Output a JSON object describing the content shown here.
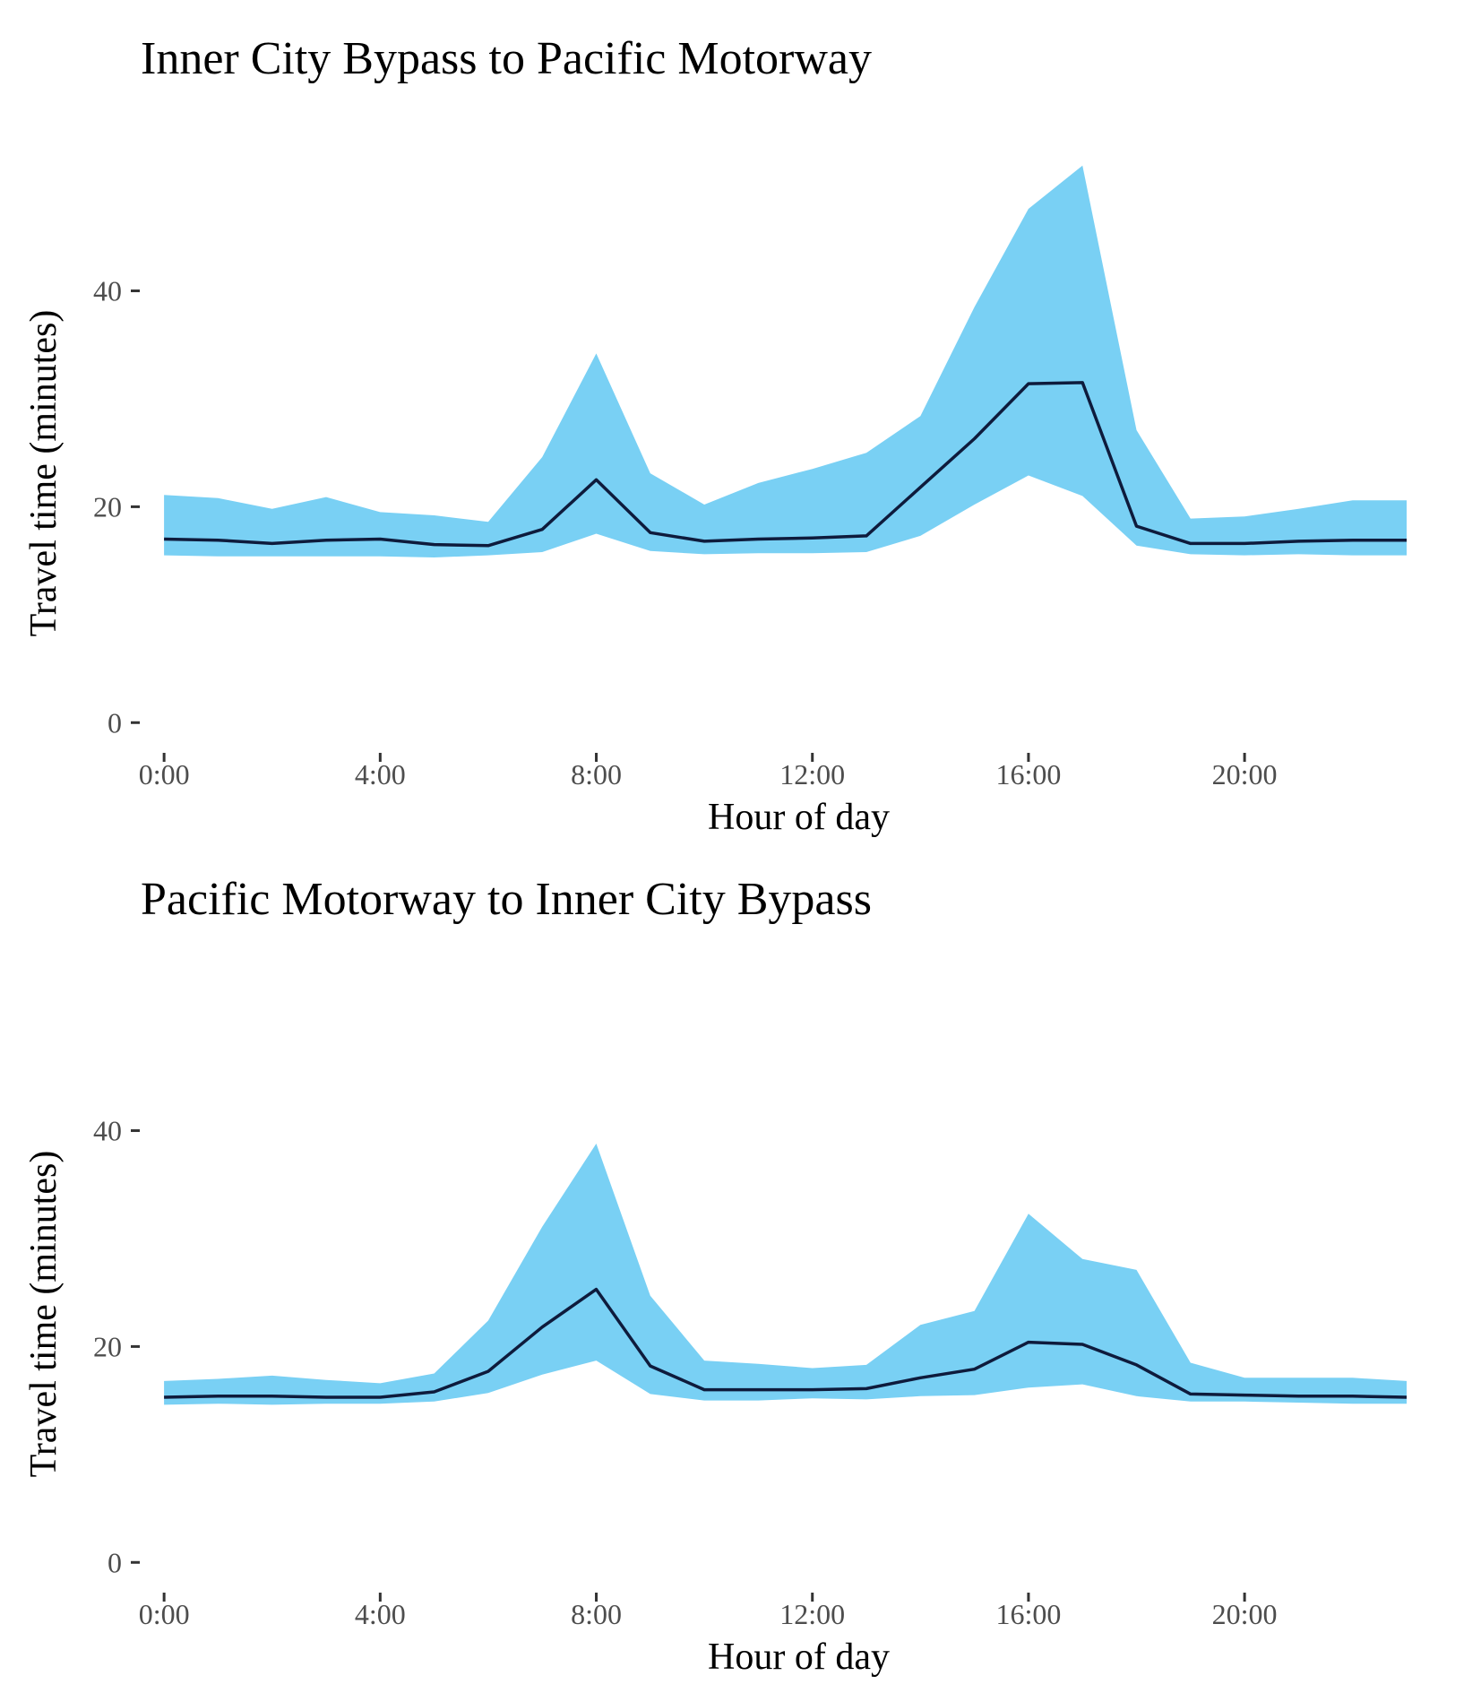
{
  "chart_data": [
    {
      "type": "area",
      "title": "Inner City Bypass to Pacific Motorway",
      "xlabel": "Hour of day",
      "ylabel": "Travel time (minutes)",
      "x": [
        0,
        1,
        2,
        3,
        4,
        5,
        6,
        7,
        8,
        9,
        10,
        11,
        12,
        13,
        14,
        15,
        16,
        17,
        18,
        19,
        20,
        21,
        22,
        23
      ],
      "xticks": [
        0,
        4,
        8,
        12,
        16,
        20
      ],
      "xtick_labels": [
        "0:00",
        "4:00",
        "8:00",
        "12:00",
        "16:00",
        "20:00"
      ],
      "yticks": [
        0,
        20,
        40
      ],
      "ytick_labels": [
        "0",
        "20",
        "40"
      ],
      "xlim": [
        -0.5,
        23
      ],
      "ylim": [
        -2.8,
        52
      ],
      "grid": false,
      "series": [
        {
          "role": "median",
          "values": [
            17.0,
            16.9,
            16.6,
            16.9,
            17.0,
            16.5,
            16.4,
            17.9,
            22.5,
            17.6,
            16.8,
            17.0,
            17.1,
            17.3,
            21.8,
            26.3,
            31.4,
            31.5,
            18.2,
            16.6,
            16.6,
            16.8,
            16.9,
            16.9
          ]
        },
        {
          "role": "upper",
          "values": [
            21.1,
            20.8,
            19.8,
            20.9,
            19.5,
            19.2,
            18.6,
            24.6,
            34.2,
            23.1,
            20.2,
            22.2,
            23.5,
            25.0,
            28.4,
            38.5,
            47.6,
            51.6,
            27.1,
            18.9,
            19.1,
            19.8,
            20.6,
            20.6
          ]
        },
        {
          "role": "lower",
          "values": [
            15.5,
            15.4,
            15.4,
            15.4,
            15.4,
            15.3,
            15.5,
            15.8,
            17.5,
            15.9,
            15.6,
            15.7,
            15.7,
            15.8,
            17.3,
            20.2,
            22.9,
            21.0,
            16.4,
            15.6,
            15.5,
            15.6,
            15.5,
            15.5
          ]
        }
      ],
      "colors": {
        "band": "#79d0f4",
        "line": "#0e1b3c"
      }
    },
    {
      "type": "area",
      "title": "Pacific Motorway to Inner City Bypass",
      "xlabel": "Hour of day",
      "ylabel": "Travel time (minutes)",
      "x": [
        0,
        1,
        2,
        3,
        4,
        5,
        6,
        7,
        8,
        9,
        10,
        11,
        12,
        13,
        14,
        15,
        16,
        17,
        18,
        19,
        20,
        21,
        22,
        23
      ],
      "xticks": [
        0,
        4,
        8,
        12,
        16,
        20
      ],
      "xtick_labels": [
        "0:00",
        "4:00",
        "8:00",
        "12:00",
        "16:00",
        "20:00"
      ],
      "yticks": [
        0,
        20,
        40
      ],
      "ytick_labels": [
        "0",
        "20",
        "40"
      ],
      "xlim": [
        -0.5,
        23
      ],
      "ylim": [
        -2.8,
        52
      ],
      "grid": false,
      "series": [
        {
          "role": "median",
          "values": [
            15.3,
            15.4,
            15.4,
            15.3,
            15.3,
            15.8,
            17.7,
            21.8,
            25.3,
            18.2,
            16.0,
            16.0,
            16.0,
            16.1,
            17.1,
            17.9,
            20.4,
            20.2,
            18.3,
            15.6,
            15.5,
            15.4,
            15.4,
            15.3
          ]
        },
        {
          "role": "upper",
          "values": [
            16.8,
            17.0,
            17.3,
            16.9,
            16.6,
            17.5,
            22.4,
            31.1,
            38.8,
            24.7,
            18.7,
            18.4,
            18.0,
            18.3,
            22.0,
            23.3,
            32.3,
            28.1,
            27.1,
            18.5,
            17.1,
            17.1,
            17.1,
            16.8
          ]
        },
        {
          "role": "lower",
          "values": [
            14.6,
            14.7,
            14.6,
            14.7,
            14.7,
            14.9,
            15.7,
            17.4,
            18.7,
            15.6,
            15.0,
            15.0,
            15.2,
            15.1,
            15.4,
            15.5,
            16.2,
            16.5,
            15.4,
            14.9,
            14.9,
            14.8,
            14.7,
            14.7
          ]
        }
      ],
      "colors": {
        "band": "#79d0f4",
        "line": "#0e1b3c"
      }
    }
  ]
}
